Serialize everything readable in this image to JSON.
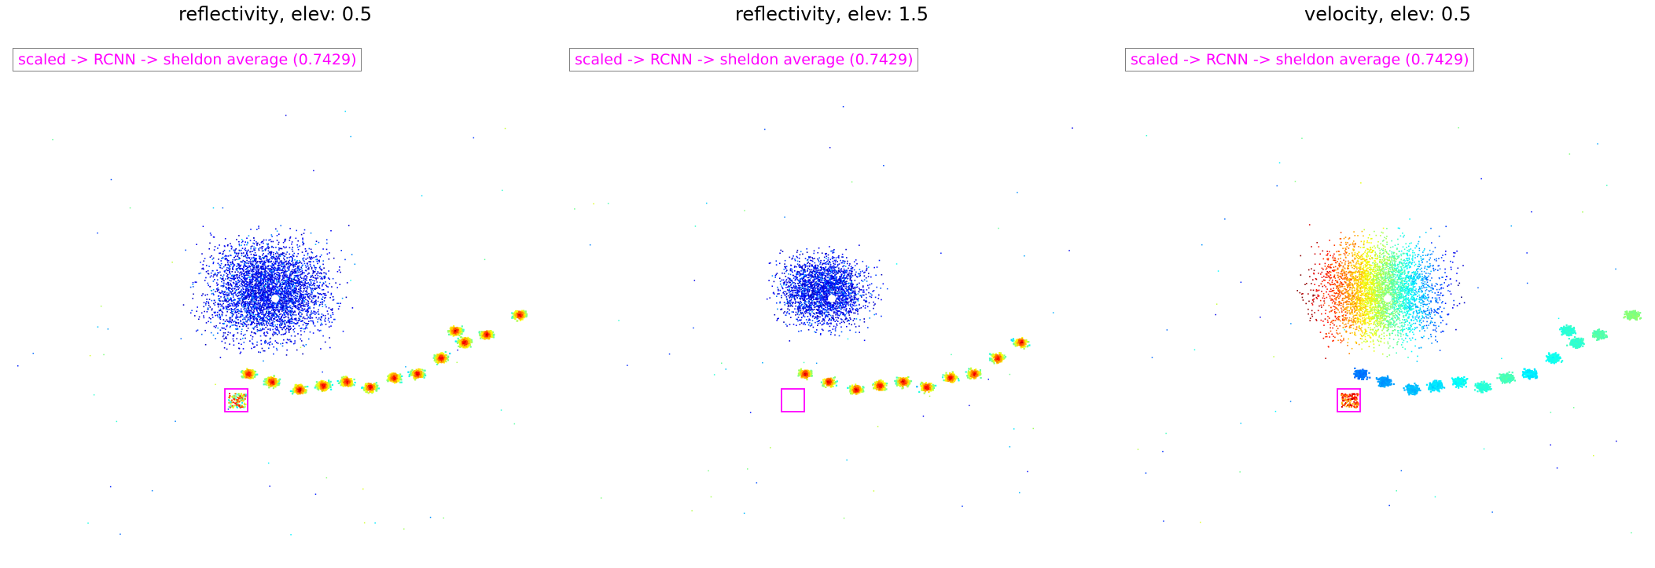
{
  "panels": [
    {
      "title": "reflectivity, elev: 0.5",
      "annotation": "scaled -> RCNN -> sheldon average (0.7429)",
      "field": "reflectivity",
      "detection_box_color": "#ff00ff"
    },
    {
      "title": "reflectivity, elev: 1.5",
      "annotation": "scaled -> RCNN -> sheldon average (0.7429)",
      "field": "reflectivity",
      "detection_box_color": "#ff00ff"
    },
    {
      "title": "velocity, elev: 0.5",
      "annotation": "scaled -> RCNN -> sheldon average (0.7429)",
      "field": "velocity",
      "detection_box_color": "#ff00ff"
    }
  ],
  "colors": {
    "annotation_text": "#ff00ff",
    "annotation_border": "#808080",
    "colormap": "jet"
  }
}
